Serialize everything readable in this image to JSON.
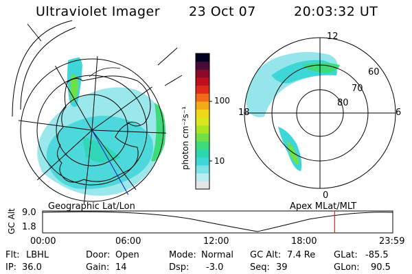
{
  "header": {
    "instrument": "Ultraviolet Imager",
    "date": "23 Oct 07",
    "time": "20:03:32 UT"
  },
  "left_map": {
    "label": "Geographic Lat/Lon"
  },
  "right_map": {
    "label": "Apex MLat/MLT",
    "mlt_labels": {
      "top": "12",
      "left": "18",
      "right": "6",
      "bottom": "0"
    },
    "mlat_labels": [
      "60",
      "70",
      "80"
    ]
  },
  "colorbar": {
    "unit": "photon cm⁻²s⁻¹",
    "ticks": [
      "100",
      "10"
    ],
    "scale": "log",
    "colors": [
      "#e6e6e6",
      "#b8ecf0",
      "#7fe1e8",
      "#3fd6d8",
      "#2cd6b0",
      "#3edb7a",
      "#6fe046",
      "#a8e421",
      "#d8e81c",
      "#f2d61a",
      "#f4a81a",
      "#f06a18",
      "#e02a18",
      "#c0101e",
      "#8a0a2a",
      "#4a0a3a",
      "#000020"
    ]
  },
  "orbit_plot": {
    "ylabel": "GC Alt",
    "ymax": "9.0",
    "ymin": "1.8",
    "xticks": [
      "00:00",
      "06:00",
      "12:00",
      "18:00",
      "23:59"
    ],
    "current_time_fraction": 0.834
  },
  "info": {
    "flt": {
      "label": "Flt:",
      "value": "LBHL"
    },
    "ip": {
      "label": "IP:",
      "value": "36.0"
    },
    "door": {
      "label": "Door:",
      "value": "Open"
    },
    "gain": {
      "label": "Gain:",
      "value": "14"
    },
    "mode": {
      "label": "Mode:",
      "value": "Normal"
    },
    "dsp": {
      "label": "Dsp:",
      "value": "-3.0"
    },
    "gcalt": {
      "label": "GC Alt:",
      "value": "7.4 Re"
    },
    "seq": {
      "label": "Seq:",
      "value": "39"
    },
    "glat": {
      "label": "GLat:",
      "value": "-85.5"
    },
    "glon": {
      "label": "GLon:",
      "value": "90.5"
    }
  }
}
